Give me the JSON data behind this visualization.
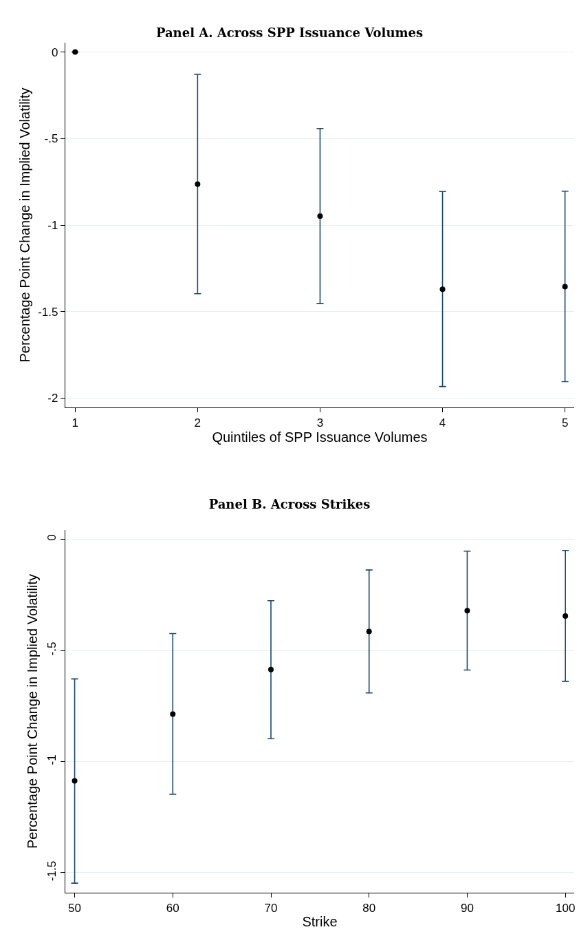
{
  "chart_data": [
    {
      "type": "scatter",
      "title": "Panel A. Across SPP Issuance Volumes",
      "xlabel": "Quintiles of SPP Issuance Volumes",
      "ylabel": "Percentage Point Change in Implied Volatility",
      "x": [
        1,
        2,
        3,
        4,
        5
      ],
      "series": [
        {
          "color": "#000000",
          "values": [
            0,
            -0.763,
            -0.948,
            -1.371,
            -1.356
          ],
          "errors": [
            null,
            [
              -1.397,
              -0.129
            ],
            [
              -1.453,
              -0.442
            ],
            [
              -1.933,
              -0.806
            ],
            [
              -1.905,
              -0.804
            ]
          ]
        }
      ],
      "xlim": [
        0.92,
        5.075
      ],
      "xticks": [
        1,
        2,
        3,
        4,
        5
      ],
      "ylim": [
        -2.054,
        0.054
      ],
      "yticks": [
        {
          "value": 0,
          "label": "0"
        },
        {
          "value": -0.5,
          "label": "-.5"
        },
        {
          "value": -1,
          "label": "-1"
        },
        {
          "value": -1.5,
          "label": "-1.5"
        },
        {
          "value": -2,
          "label": "-2"
        }
      ],
      "grid": "y",
      "marker": "circle"
    },
    {
      "type": "scatter",
      "title": "Panel B. Across Strikes",
      "xlabel": "Strike",
      "ylabel": "Percentage Point Change in Implied Volatility",
      "x": [
        50,
        60,
        70,
        80,
        90,
        100
      ],
      "series": [
        {
          "color": "#000000",
          "values": [
            -1.087,
            -0.786,
            -0.586,
            -0.415,
            -0.321,
            -0.345
          ],
          "errors": [
            [
              -1.547,
              -0.628
            ],
            [
              -1.147,
              -0.424
            ],
            [
              -0.897,
              -0.276
            ],
            [
              -0.691,
              -0.138
            ],
            [
              -0.588,
              -0.053
            ],
            [
              -0.639,
              -0.05
            ]
          ]
        }
      ],
      "xlim": [
        49.05,
        100.9
      ],
      "xticks": [
        50,
        60,
        70,
        80,
        90,
        100
      ],
      "ylim": [
        -1.59,
        0.042
      ],
      "yticks": [
        {
          "value": 0,
          "label": "0"
        },
        {
          "value": -0.5,
          "label": "-.5"
        },
        {
          "value": -1,
          "label": "-1"
        },
        {
          "value": -1.5,
          "label": "-1.5"
        }
      ],
      "grid": "y",
      "marker": "circle"
    }
  ]
}
